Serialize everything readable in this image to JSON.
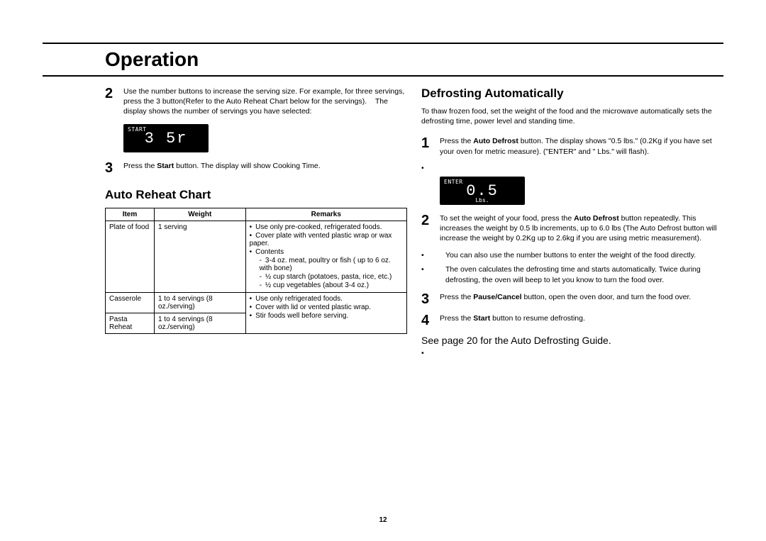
{
  "page": {
    "title": "Operation",
    "pageNumber": "12"
  },
  "left": {
    "step2": {
      "num": "2",
      "text_a": "Use the number buttons to increase the serving size. For example, for three servings, press the 3  button(Refer to the Auto Reheat Chart below for the servings).",
      "text_b": "The display shows the number of servings you have selected:"
    },
    "display1": {
      "topLabel": "START",
      "main": "3  5r"
    },
    "step3": {
      "num": "3",
      "pre": "Press the ",
      "bold": "Start",
      "post": " button. The display will show Cooking Time."
    },
    "chartTitle": "Auto Reheat Chart",
    "tableHeaders": {
      "c1": "Item",
      "c2": "Weight",
      "c3": "Remarks"
    },
    "row1": {
      "item": "Plate of food",
      "weight": "1 serving",
      "b1": "Use only pre-cooked, refrigerated foods.",
      "b2": "Cover plate with vented plastic wrap or wax paper.",
      "b3": "Contents",
      "s1": "3-4 oz. meat, poultry or fish ( up to 6 oz. with bone)",
      "s2": "½ cup starch (potatoes, pasta, rice, etc.)",
      "s3": "½ cup vegetables (about 3-4 oz.)"
    },
    "row2": {
      "item": "Casserole",
      "weight": "1 to 4 servings (8 oz./serving)",
      "b1": "Use only refrigerated foods.",
      "b2": "Cover with lid or vented plastic wrap."
    },
    "row3": {
      "item": "Pasta Reheat",
      "weight": "1 to 4 servings (8 oz./serving)",
      "b1": "Stir foods well before serving."
    }
  },
  "right": {
    "heading": "Defrosting Automatically",
    "intro": "To thaw frozen food, set the weight of the food and the microwave automatically sets the defrosting time, power level and standing time.",
    "step1": {
      "num": "1",
      "pre": "Press the ",
      "bold": "Auto Defrost",
      "post": " button. The display shows \"0.5 lbs.\" (0.2Kg if you have set your oven for metric measure). (\"ENTER\" and \" Lbs.\" will flash)."
    },
    "display2": {
      "topLabel": "ENTER",
      "main": "0.5",
      "bottomLabel": "Lbs."
    },
    "step2": {
      "num": "2",
      "pre": "To set the weight of your food, press the ",
      "bold": "Auto Defrost",
      "post": " button repeatedly. This increases the weight by 0.5 lb increments, up to 6.0 lbs (The Auto Defrost button will increase the weight by 0.2Kg up to 2.6kg if you are using metric measurement)."
    },
    "bullet1": "You can also use the number buttons to enter the weight of the food directly.",
    "bullet2": "The oven calculates the defrosting time and starts automatically. Twice during defrosting, the oven will beep to let you know to turn the food over.",
    "step3": {
      "num": "3",
      "pre": "Press the ",
      "bold": "Pause/Cancel",
      "post": " button, open the oven door, and turn the food over."
    },
    "step4": {
      "num": "4",
      "pre": "Press the ",
      "bold": "Start",
      "post": " button to resume defrosting."
    },
    "seePage": "See page 20 for the Auto Defrosting Guide."
  }
}
